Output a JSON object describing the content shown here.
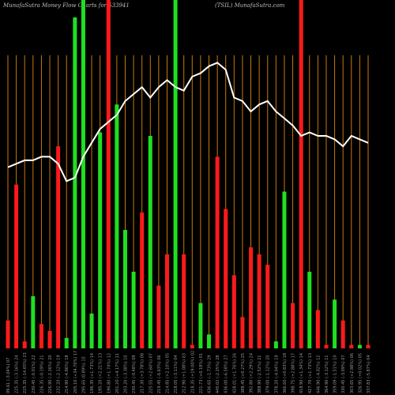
{
  "header": {
    "left": "MunafaSutra  Money Flow  Charts for 533941",
    "right": "(TSIL) MunafaSutra.com"
  },
  "colors": {
    "up": "#1fe01f",
    "down": "#ff1a1a",
    "grid": "#c8780a",
    "line": "#ffffff",
    "background": "#000000"
  },
  "chart_data": {
    "type": "bar",
    "title": "",
    "xlabel": "",
    "ylabel": "",
    "ylim": [
      0,
      100
    ],
    "categories": [
      "09.61 (-3.04%) 07",
      "225.35 (-3.16%) 24",
      "225.35 (-14.65%) 23",
      "230.45 (-0.01%) 22",
      "226.35 (-0.19%) 21",
      "226.90 (-2.26%) 20",
      "232.20 (-2.12%) 19",
      "214.90 (-4.86%) 18",
      "205.10 (+34.70%) 17",
      "295.65 (0.89%) 15",
      "196.35 (+1.73%) 14",
      "195.20 (+2.21%) 13",
      "190.80 (+1.74%) 12",
      "201.20 (+4.17%) 11",
      "203.20 (-3.38%) 10",
      "230.45 (-0.48%) 09",
      "217.30 (+3.78%) 08",
      "225.55 (+2.60%) 07",
      "219.45 (-6.63%) 06",
      "214.85 (+2.10%) 05",
      "218.05 (-3.11%) 04",
      "212.90 (+1.08%) 03",
      "218.35 (+19.00%) 02",
      "221.73 (+0.18%) 01",
      "436.65 (-1.73%) 29",
      "445.02 (-2.25%) 28",
      "436.00 (-6.58%) 27",
      "428.01 (+1.76%) 26",
      "388.45 (+0.27%) 25",
      "392.80 (+2.29%) 24",
      "388.90 (-2.52%) 21",
      "379.00 (-1.12%) 20",
      "378.20 (-4.04%) 19",
      "366.60 (+0.83%) 18",
      "398.75 (+2.88%) 17",
      "418.90 (+1.34%) 14",
      "427.70 (+1.73%) 13",
      "446.90 (-4.02%) 12",
      "364.90 (-3.12%) 11",
      "359.09 (-1.51%) 10",
      "330.45 (-3.09%) 07",
      "303.65 (+2.88%) 06",
      "326.95 (+0.02%) 05",
      "337.83 (-5.87%) 04"
    ],
    "series": [
      {
        "values": [
          8,
          47,
          2,
          15,
          7,
          5,
          58,
          3,
          95,
          100,
          10,
          62,
          100,
          70,
          34,
          22,
          39,
          61,
          18,
          27,
          100,
          27,
          1,
          13,
          4,
          55,
          40,
          21,
          9,
          29,
          27,
          24,
          2,
          45,
          13,
          100,
          22,
          11,
          1,
          14,
          8,
          1,
          1,
          1
        ],
        "colors": [
          "r",
          "r",
          "r",
          "g",
          "r",
          "r",
          "r",
          "g",
          "g",
          "g",
          "g",
          "g",
          "r",
          "g",
          "g",
          "g",
          "r",
          "g",
          "r",
          "r",
          "g",
          "r",
          "r",
          "g",
          "g",
          "r",
          "r",
          "r",
          "r",
          "r",
          "r",
          "r",
          "g",
          "g",
          "r",
          "r",
          "g",
          "r",
          "r",
          "g",
          "r",
          "r",
          "g",
          "r"
        ]
      },
      {
        "values": [
          52,
          53,
          54,
          54,
          55,
          55,
          53,
          48,
          49,
          55,
          59,
          63,
          65,
          67,
          71,
          73,
          75,
          72,
          75,
          77,
          75,
          74,
          78,
          79,
          81,
          82,
          80,
          72,
          71,
          68,
          70,
          71,
          68,
          66,
          64,
          61,
          62,
          61,
          61,
          60,
          58,
          61,
          60,
          59
        ],
        "style": "line"
      }
    ]
  }
}
